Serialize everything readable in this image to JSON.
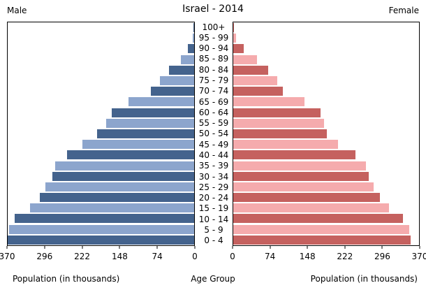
{
  "header": {
    "title": "Israel - 2014",
    "male": "Male",
    "female": "Female"
  },
  "axis": {
    "male_ticks": [
      "370",
      "296",
      "222",
      "148",
      "74",
      "0"
    ],
    "female_ticks": [
      "0",
      "74",
      "148",
      "222",
      "296",
      "370"
    ],
    "male_axis_label": "Population (in thousands)",
    "female_axis_label": "Population (in thousands)",
    "center_axis_label": "Age Group"
  },
  "colors": {
    "male_dark": "#44638d",
    "male_light": "#8ca5cd",
    "female_dark": "#c5615f",
    "female_light": "#f5abad"
  },
  "chart_data": {
    "type": "bar",
    "subtype": "population-pyramid",
    "title": "Israel - 2014",
    "xlabel_left": "Population (in thousands)",
    "xlabel_right": "Population (in thousands)",
    "center_label": "Age Group",
    "xlim": [
      0,
      370
    ],
    "grid": false,
    "categories_top_to_bottom": [
      "100+",
      "95 - 99",
      "90 - 94",
      "85 - 89",
      "80 - 84",
      "75 - 79",
      "70 - 74",
      "65 - 69",
      "60 - 64",
      "55 - 59",
      "50 - 54",
      "45 - 49",
      "40 - 44",
      "35 - 39",
      "30 - 34",
      "25 - 29",
      "20 - 24",
      "15 - 19",
      "10 - 14",
      "5 - 9",
      "0 - 4"
    ],
    "series": [
      {
        "name": "Male",
        "values": [
          1,
          3,
          13,
          26,
          50,
          68,
          86,
          130,
          163,
          174,
          193,
          222,
          252,
          276,
          281,
          295,
          306,
          326,
          356,
          367,
          370
        ]
      },
      {
        "name": "Female",
        "values": [
          1.5,
          5,
          21,
          47,
          69,
          87,
          99,
          142,
          174,
          181,
          187,
          209,
          243,
          264,
          270,
          280,
          292,
          310,
          338,
          350,
          354
        ]
      }
    ]
  }
}
